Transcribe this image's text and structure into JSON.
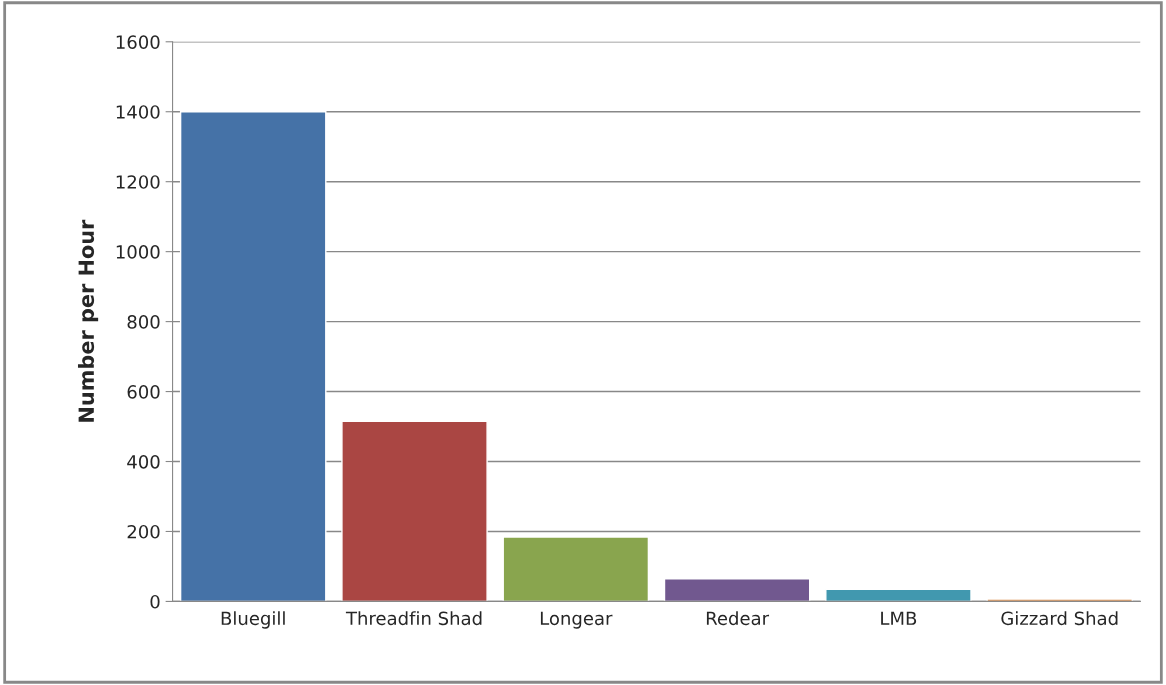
{
  "chart_data": {
    "type": "bar",
    "ylabel": "Number per Hour",
    "categories": [
      "Bluegill",
      "Threadfin Shad",
      "Longear",
      "Redear",
      "LMB",
      "Gizzard Shad"
    ],
    "values": [
      1400,
      515,
      184,
      65,
      35,
      7
    ],
    "colors": [
      "#4572a7",
      "#aa4643",
      "#89a54e",
      "#71588f",
      "#4198af",
      "#db843d"
    ],
    "ylim": [
      0,
      1600
    ],
    "yticks": [
      0,
      200,
      400,
      600,
      800,
      1000,
      1200,
      1400,
      1600
    ],
    "grid": "y",
    "legend": false
  }
}
